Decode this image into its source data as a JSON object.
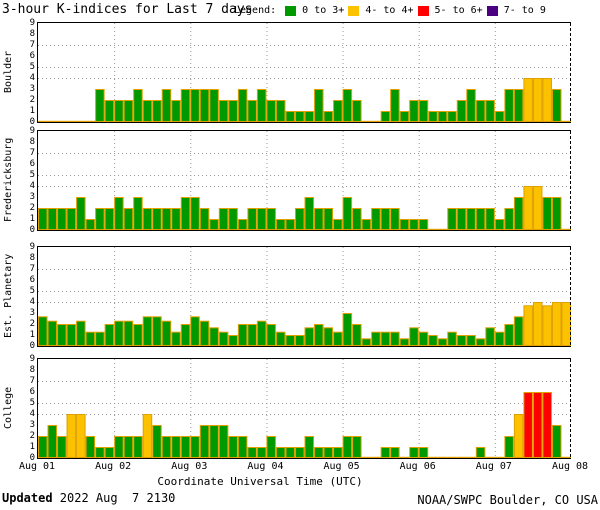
{
  "header": {
    "title": "3-hour K-indices for Last 7 days"
  },
  "legend": {
    "label": "Legend:",
    "items": [
      {
        "label": "0 to 3+",
        "color": "#009a00"
      },
      {
        "label": "4- to 4+",
        "color": "#fcc200"
      },
      {
        "label": "5- to 6+",
        "color": "#ff0000"
      },
      {
        "label": "7- to 9",
        "color": "#4b0082"
      }
    ]
  },
  "y_axis": {
    "ticks": [
      "9",
      "8",
      "7",
      "6",
      "5",
      "4",
      "3",
      "2",
      "1",
      "0"
    ]
  },
  "x_axis": {
    "day_labels": [
      "Aug 01",
      "Aug 02",
      "Aug 03",
      "Aug 04",
      "Aug 05",
      "Aug 06",
      "Aug 07",
      "Aug 08"
    ],
    "title": "Coordinate Universal Time (UTC)"
  },
  "footer": {
    "updated_label": "Updated",
    "updated_value": " 2022 Aug  7 2130",
    "credit": "NOAA/SWPC Boulder, CO USA"
  },
  "chart_data": {
    "type": "bar",
    "ylim": [
      0,
      9
    ],
    "bars_per_day": 8,
    "interval_hours": 3,
    "gridlines_y": [
      4,
      5,
      7
    ],
    "legend_position": "top-right",
    "colors": {
      "green": "#009a00",
      "yellow": "#fcc200",
      "red": "#ff0000",
      "purple": "#4b0082",
      "bar_outline": "#e0a000",
      "gridline": "#999999"
    },
    "thresholds": {
      "yellow_min": 3.67,
      "red_min": 4.67,
      "purple_min": 6.67
    },
    "panels": [
      {
        "station": "Boulder",
        "values": [
          0,
          0,
          0,
          0,
          0,
          0,
          3,
          2,
          2,
          2,
          3,
          2,
          2,
          3,
          2,
          3,
          3,
          3,
          3,
          2,
          2,
          3,
          2,
          3,
          2,
          2,
          1,
          1,
          1,
          3,
          1,
          2,
          3,
          2,
          0,
          0,
          1,
          3,
          1,
          2,
          2,
          1,
          1,
          1,
          2,
          3,
          2,
          2,
          1,
          3,
          3,
          4,
          4,
          4,
          3,
          0
        ]
      },
      {
        "station": "Fredericksburg",
        "values": [
          2,
          2,
          2,
          2,
          3,
          1,
          2,
          2,
          3,
          2,
          3,
          2,
          2,
          2,
          2,
          3,
          3,
          2,
          1,
          2,
          2,
          1,
          2,
          2,
          2,
          1,
          1,
          2,
          3,
          2,
          2,
          1,
          3,
          2,
          1,
          2,
          2,
          2,
          1,
          1,
          1,
          0,
          0,
          2,
          2,
          2,
          2,
          2,
          1,
          2,
          3,
          4,
          4,
          3,
          3,
          0
        ]
      },
      {
        "station": "Est. Planetary",
        "values": [
          2.7,
          2.3,
          2,
          2,
          2.3,
          1.3,
          1.3,
          2,
          2.3,
          2.3,
          2,
          2.7,
          2.7,
          2.3,
          1.3,
          2,
          2.7,
          2.3,
          1.7,
          1.3,
          1,
          2,
          2,
          2.3,
          2,
          1.3,
          1,
          1,
          1.7,
          2,
          1.7,
          1.3,
          3,
          2,
          0.7,
          1.3,
          1.3,
          1.3,
          0.7,
          1.7,
          1.3,
          1,
          0.7,
          1.3,
          1,
          1,
          0.7,
          1.7,
          1.3,
          2,
          2.7,
          3.7,
          4,
          3.7,
          4,
          4
        ]
      },
      {
        "station": "College",
        "values": [
          2,
          3,
          2,
          4,
          4,
          2,
          1,
          1,
          2,
          2,
          2,
          4,
          3,
          2,
          2,
          2,
          2,
          3,
          3,
          3,
          2,
          2,
          1,
          1,
          2,
          1,
          1,
          1,
          2,
          1,
          1,
          1,
          2,
          2,
          0,
          0,
          1,
          1,
          0,
          1,
          1,
          0,
          0,
          0,
          0,
          0,
          1,
          0,
          0,
          2,
          4,
          6,
          6,
          6,
          3,
          0
        ]
      }
    ]
  }
}
